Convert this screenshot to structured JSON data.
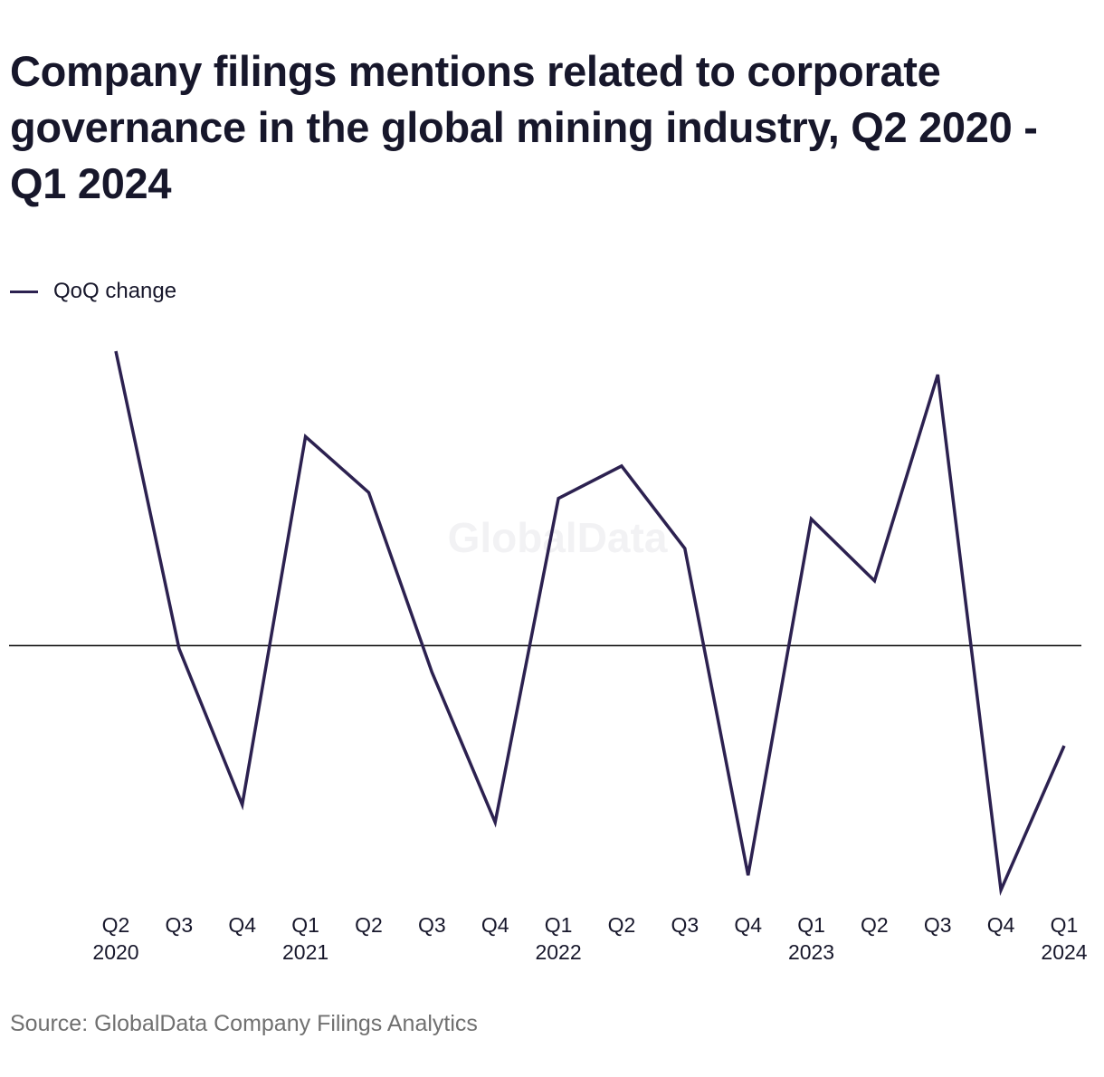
{
  "title": "Company filings mentions related to corporate governance in the global mining industry, Q2 2020 - Q1 2024",
  "legend": {
    "label": "QoQ change",
    "color": "#2c2150"
  },
  "watermark": "GlobalData",
  "source": "Source: GlobalData Company Filings Analytics",
  "chart_data": {
    "type": "line",
    "title": "Company filings mentions related to corporate governance in the global mining industry, Q2 2020 - Q1 2024",
    "xlabel": "",
    "ylabel": "",
    "grid": false,
    "legend_position": "top-left",
    "baseline": 0,
    "categories": [
      "Q2 2020",
      "Q3 2020",
      "Q4 2020",
      "Q1 2021",
      "Q2 2021",
      "Q3 2021",
      "Q4 2021",
      "Q1 2022",
      "Q2 2022",
      "Q3 2022",
      "Q4 2022",
      "Q1 2023",
      "Q2 2023",
      "Q3 2023",
      "Q4 2023",
      "Q1 2024"
    ],
    "tick_labels": [
      {
        "quarter": "Q2",
        "year": "2020"
      },
      {
        "quarter": "Q3",
        "year": ""
      },
      {
        "quarter": "Q4",
        "year": ""
      },
      {
        "quarter": "Q1",
        "year": "2021"
      },
      {
        "quarter": "Q2",
        "year": ""
      },
      {
        "quarter": "Q3",
        "year": ""
      },
      {
        "quarter": "Q4",
        "year": ""
      },
      {
        "quarter": "Q1",
        "year": "2022"
      },
      {
        "quarter": "Q2",
        "year": ""
      },
      {
        "quarter": "Q3",
        "year": ""
      },
      {
        "quarter": "Q4",
        "year": ""
      },
      {
        "quarter": "Q1",
        "year": "2023"
      },
      {
        "quarter": "Q2",
        "year": ""
      },
      {
        "quarter": "Q3",
        "year": ""
      },
      {
        "quarter": "Q4",
        "year": ""
      },
      {
        "quarter": "Q1",
        "year": "2024"
      }
    ],
    "ylim": [
      -0.85,
      1.0
    ],
    "series": [
      {
        "name": "QoQ change",
        "color": "#2c2150",
        "values": [
          1.0,
          -0.01,
          -0.54,
          0.71,
          0.52,
          -0.09,
          -0.6,
          0.5,
          0.61,
          0.33,
          -0.78,
          0.43,
          0.22,
          0.92,
          -0.83,
          -0.34
        ]
      }
    ]
  }
}
